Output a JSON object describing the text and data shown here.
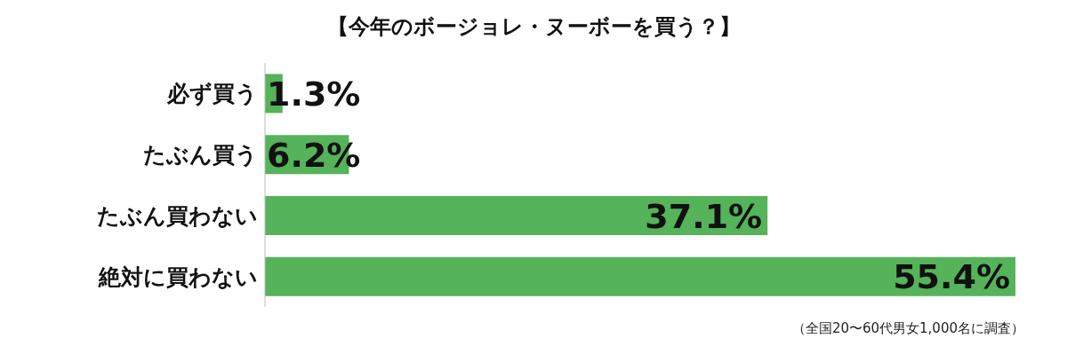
{
  "chart_data": {
    "type": "bar",
    "orientation": "horizontal",
    "title": "【今年のボージョレ・ヌーボーを買う？】",
    "categories": [
      "必ず買う",
      "たぶん買う",
      "たぶん買わない",
      "絶対に買わない"
    ],
    "values": [
      1.3,
      6.2,
      37.1,
      55.4
    ],
    "value_labels": [
      "1.3%",
      "6.2%",
      "37.1%",
      "55.4%"
    ],
    "color": "#55b35a",
    "annotations": [
      "（全国20〜60代男女1,000名に調査）"
    ]
  }
}
